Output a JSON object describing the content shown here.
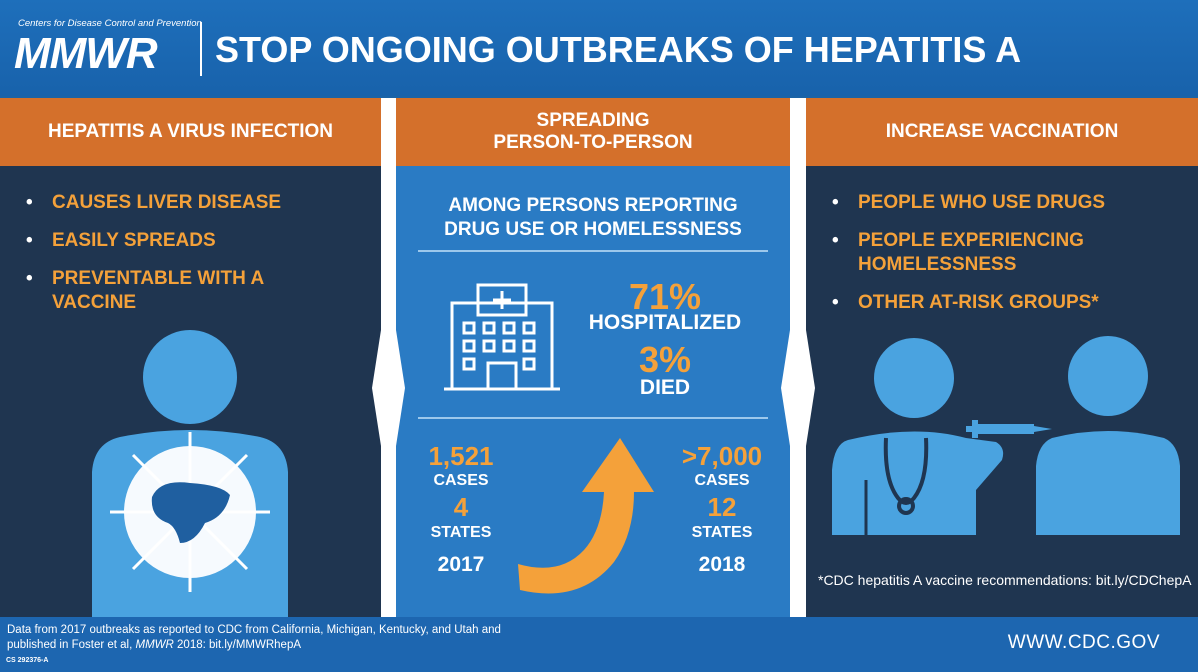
{
  "header": {
    "org": "Centers for Disease Control and Prevention",
    "logo": "MMWR",
    "title": "STOP ONGOING OUTBREAKS OF HEPATITIS A"
  },
  "left": {
    "heading": "HEPATITIS A VIRUS INFECTION",
    "bullets": [
      "CAUSES LIVER DISEASE",
      "EASILY SPREADS",
      "PREVENTABLE WITH A VACCINE"
    ],
    "icon": "person-with-liver-icon"
  },
  "middle": {
    "heading_line1": "SPREADING",
    "heading_line2": "PERSON-TO-PERSON",
    "subheading_line1": "AMONG PERSONS REPORTING",
    "subheading_line2": "DRUG USE OR HOMELESSNESS",
    "hospitalized_pct": "71%",
    "hospitalized_label": "HOSPITALIZED",
    "died_pct": "3%",
    "died_label": "DIED",
    "icon": "hospital-building-icon",
    "y2017": {
      "cases": "1,521",
      "cases_label": "CASES",
      "states": "4",
      "states_label": "STATES",
      "year": "2017"
    },
    "y2018": {
      "cases": ">7,000",
      "cases_label": "CASES",
      "states": "12",
      "states_label": "STATES",
      "year": "2018"
    },
    "arrow_icon": "increase-arrow-icon"
  },
  "right": {
    "heading": "INCREASE VACCINATION",
    "bullets": [
      "PEOPLE WHO USE DRUGS",
      "PEOPLE EXPERIENCING HOMELESSNESS",
      "OTHER AT-RISK GROUPS*"
    ],
    "footnote": "*CDC hepatitis A vaccine recommendations: bit.ly/CDChepA",
    "icon": "doctor-vaccinating-person-icon"
  },
  "footer": {
    "note_part1": "Data from 2017 outbreaks as reported to CDC from California, Michigan, Kentucky, and Utah and published in Foster et al, ",
    "note_journal": "MMWR",
    "note_part2": " 2018: bit.ly/MMWRhepA",
    "id": "CS 292376-A",
    "url": "WWW.CDC.GOV"
  },
  "colors": {
    "blue": "#1e6fbb",
    "navy": "#1f3550",
    "orange": "#d4702b",
    "accent": "#f4a13a",
    "icon": "#4aa3e0"
  }
}
